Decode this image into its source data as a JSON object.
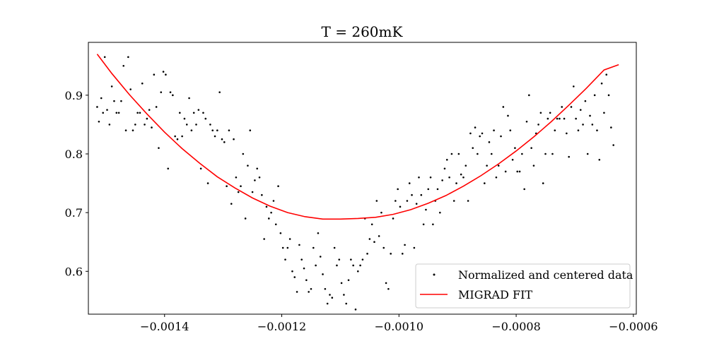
{
  "chart_data": {
    "type": "scatter",
    "title": "T = 260mK",
    "xlabel": "",
    "ylabel": "",
    "xlim": [
      -0.00153,
      -0.000595
    ],
    "ylim": [
      0.527,
      0.99
    ],
    "xticks": [
      -0.0014,
      -0.0012,
      -0.001,
      -0.0008,
      -0.0006
    ],
    "xtick_labels": [
      "−0.0014",
      "−0.0012",
      "−0.0010",
      "−0.0008",
      "−0.0006"
    ],
    "yticks": [
      0.6,
      0.7,
      0.8,
      0.9
    ],
    "ytick_labels": [
      "0.6",
      "0.7",
      "0.8",
      "0.9"
    ],
    "grid": false,
    "legend_position": "lower-right",
    "series": [
      {
        "name": "Normalized and centered data",
        "kind": "scatter",
        "color": "#000000",
        "x": [
          -0.001515,
          -0.001512,
          -0.001508,
          -0.001505,
          -0.001502,
          -0.001498,
          -0.001494,
          -0.00149,
          -0.001486,
          -0.001482,
          -0.001478,
          -0.001474,
          -0.00147,
          -0.001466,
          -0.001462,
          -0.001458,
          -0.001454,
          -0.00145,
          -0.001446,
          -0.001442,
          -0.001438,
          -0.001434,
          -0.00143,
          -0.001426,
          -0.001422,
          -0.001418,
          -0.001414,
          -0.00141,
          -0.001406,
          -0.001402,
          -0.001398,
          -0.001394,
          -0.00139,
          -0.001386,
          -0.001382,
          -0.001378,
          -0.001374,
          -0.00137,
          -0.001366,
          -0.001362,
          -0.001358,
          -0.001354,
          -0.00135,
          -0.001346,
          -0.001342,
          -0.001338,
          -0.001334,
          -0.00133,
          -0.001326,
          -0.001322,
          -0.001318,
          -0.001314,
          -0.00131,
          -0.001306,
          -0.001302,
          -0.001298,
          -0.001294,
          -0.00129,
          -0.001286,
          -0.001282,
          -0.001278,
          -0.001274,
          -0.00127,
          -0.001266,
          -0.001262,
          -0.001258,
          -0.001254,
          -0.00125,
          -0.001246,
          -0.001242,
          -0.001238,
          -0.001234,
          -0.00123,
          -0.001226,
          -0.001222,
          -0.001218,
          -0.001214,
          -0.00121,
          -0.001206,
          -0.001202,
          -0.001198,
          -0.001194,
          -0.00119,
          -0.001186,
          -0.001182,
          -0.001178,
          -0.001174,
          -0.00117,
          -0.001166,
          -0.001162,
          -0.001158,
          -0.001154,
          -0.00115,
          -0.001146,
          -0.001142,
          -0.001138,
          -0.001134,
          -0.00113,
          -0.001126,
          -0.001122,
          -0.001118,
          -0.001114,
          -0.00111,
          -0.001106,
          -0.001102,
          -0.001098,
          -0.001094,
          -0.00109,
          -0.001086,
          -0.001082,
          -0.001078,
          -0.001074,
          -0.00107,
          -0.001066,
          -0.001062,
          -0.001058,
          -0.001054,
          -0.00105,
          -0.001046,
          -0.001042,
          -0.001038,
          -0.001034,
          -0.00103,
          -0.001026,
          -0.001022,
          -0.001018,
          -0.001014,
          -0.00101,
          -0.001006,
          -0.001002,
          -0.000998,
          -0.000994,
          -0.00099,
          -0.000986,
          -0.000982,
          -0.000978,
          -0.000974,
          -0.00097,
          -0.000966,
          -0.000962,
          -0.000958,
          -0.000954,
          -0.00095,
          -0.000946,
          -0.000942,
          -0.000938,
          -0.000934,
          -0.00093,
          -0.000926,
          -0.000922,
          -0.000918,
          -0.000914,
          -0.00091,
          -0.000906,
          -0.000902,
          -0.000898,
          -0.000894,
          -0.00089,
          -0.000886,
          -0.000882,
          -0.000878,
          -0.000874,
          -0.00087,
          -0.000866,
          -0.000862,
          -0.000858,
          -0.000854,
          -0.00085,
          -0.000846,
          -0.000842,
          -0.000838,
          -0.000834,
          -0.00083,
          -0.000826,
          -0.000822,
          -0.000818,
          -0.000814,
          -0.00081,
          -0.000806,
          -0.000802,
          -0.000798,
          -0.000794,
          -0.00079,
          -0.000786,
          -0.000782,
          -0.000778,
          -0.000774,
          -0.00077,
          -0.000766,
          -0.000762,
          -0.000758,
          -0.000754,
          -0.00075,
          -0.000746,
          -0.000742,
          -0.000738,
          -0.000734,
          -0.00073,
          -0.000726,
          -0.000722,
          -0.000718,
          -0.000714,
          -0.00071,
          -0.000706,
          -0.000702,
          -0.000698,
          -0.000694,
          -0.00069,
          -0.000686,
          -0.000682,
          -0.000678,
          -0.000674,
          -0.00067,
          -0.000666,
          -0.000662,
          -0.000658,
          -0.000654,
          -0.00065,
          -0.000646,
          -0.000642,
          -0.000638,
          -0.000634
        ],
        "y": [
          0.88,
          0.855,
          0.895,
          0.87,
          0.965,
          0.875,
          0.85,
          0.915,
          0.89,
          0.87,
          0.87,
          0.89,
          0.95,
          0.84,
          0.965,
          0.91,
          0.84,
          0.85,
          0.87,
          0.87,
          0.92,
          0.85,
          0.86,
          0.875,
          0.845,
          0.935,
          0.88,
          0.81,
          0.905,
          0.94,
          0.935,
          0.775,
          0.905,
          0.9,
          0.83,
          0.825,
          0.87,
          0.83,
          0.86,
          0.85,
          0.895,
          0.84,
          0.87,
          0.85,
          0.875,
          0.775,
          0.87,
          0.86,
          0.75,
          0.85,
          0.84,
          0.83,
          0.84,
          0.905,
          0.825,
          0.82,
          0.745,
          0.84,
          0.715,
          0.825,
          0.76,
          0.735,
          0.745,
          0.8,
          0.69,
          0.78,
          0.84,
          0.735,
          0.755,
          0.775,
          0.76,
          0.73,
          0.655,
          0.71,
          0.69,
          0.7,
          0.72,
          0.68,
          0.745,
          0.665,
          0.64,
          0.62,
          0.64,
          0.655,
          0.6,
          0.59,
          0.565,
          0.645,
          0.62,
          0.605,
          0.585,
          0.565,
          0.57,
          0.64,
          0.61,
          0.665,
          0.625,
          0.595,
          0.57,
          0.545,
          0.56,
          0.555,
          0.64,
          0.61,
          0.62,
          0.58,
          0.56,
          0.545,
          0.585,
          0.62,
          0.61,
          0.535,
          0.6,
          0.61,
          0.62,
          0.69,
          0.63,
          0.655,
          0.68,
          0.65,
          0.72,
          0.66,
          0.7,
          0.64,
          0.58,
          0.57,
          0.63,
          0.69,
          0.72,
          0.74,
          0.71,
          0.63,
          0.645,
          0.72,
          0.75,
          0.73,
          0.64,
          0.715,
          0.76,
          0.73,
          0.68,
          0.705,
          0.74,
          0.76,
          0.68,
          0.72,
          0.74,
          0.7,
          0.755,
          0.775,
          0.79,
          0.76,
          0.8,
          0.72,
          0.75,
          0.8,
          0.765,
          0.76,
          0.78,
          0.72,
          0.835,
          0.81,
          0.845,
          0.8,
          0.83,
          0.835,
          0.75,
          0.78,
          0.82,
          0.8,
          0.84,
          0.76,
          0.78,
          0.83,
          0.88,
          0.77,
          0.865,
          0.84,
          0.79,
          0.81,
          0.77,
          0.77,
          0.8,
          0.74,
          0.855,
          0.9,
          0.81,
          0.78,
          0.835,
          0.85,
          0.87,
          0.75,
          0.8,
          0.86,
          0.87,
          0.8,
          0.84,
          0.86,
          0.86,
          0.88,
          0.86,
          0.835,
          0.795,
          0.88,
          0.915,
          0.86,
          0.84,
          0.875,
          0.85,
          0.89,
          0.8,
          0.865,
          0.85,
          0.9,
          0.84,
          0.79,
          0.92,
          0.87,
          0.935,
          0.9,
          0.845,
          0.815
        ],
        "points": "see x/y"
      },
      {
        "name": "MIGRAD FIT",
        "kind": "line",
        "color": "#ff0000",
        "x": [
          -0.001515,
          -0.00149,
          -0.00146,
          -0.00143,
          -0.0014,
          -0.00137,
          -0.00134,
          -0.00131,
          -0.00128,
          -0.00125,
          -0.00122,
          -0.00119,
          -0.00116,
          -0.00113,
          -0.0011,
          -0.00107,
          -0.00104,
          -0.00101,
          -0.00098,
          -0.00095,
          -0.00092,
          -0.00089,
          -0.00086,
          -0.00083,
          -0.0008,
          -0.00077,
          -0.00074,
          -0.00071,
          -0.00068,
          -0.00065,
          -0.000625
        ],
        "y": [
          0.97,
          0.937,
          0.901,
          0.868,
          0.837,
          0.809,
          0.784,
          0.761,
          0.742,
          0.725,
          0.711,
          0.7,
          0.693,
          0.689,
          0.689,
          0.69,
          0.692,
          0.697,
          0.705,
          0.716,
          0.729,
          0.745,
          0.763,
          0.783,
          0.805,
          0.829,
          0.855,
          0.883,
          0.912,
          0.943,
          0.952
        ]
      }
    ]
  }
}
